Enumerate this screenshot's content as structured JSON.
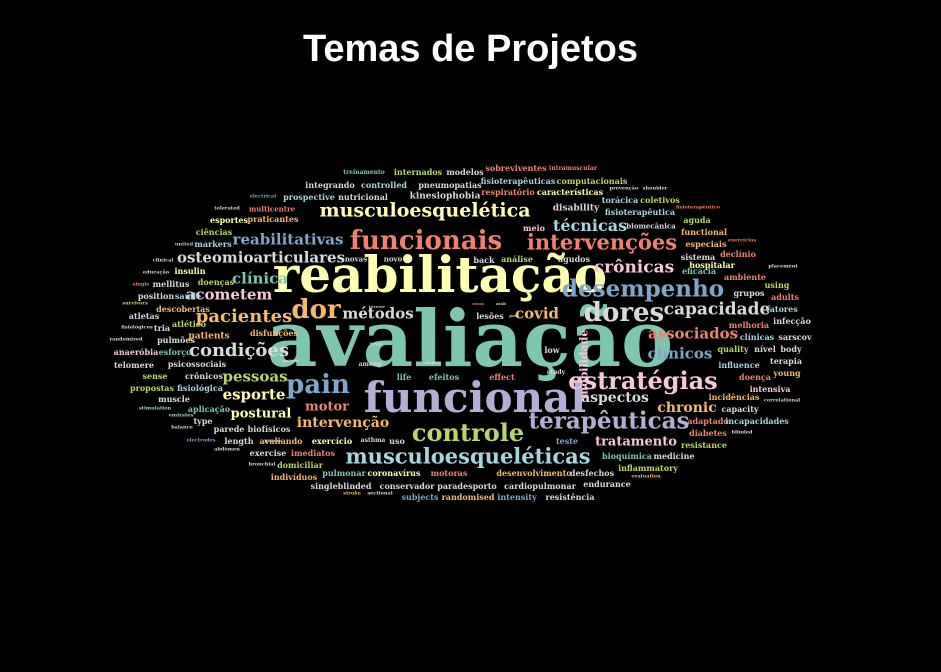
{
  "header": {
    "title": "Temas de Projetos"
  },
  "palette": {
    "teal": "#7fc6b1",
    "lavender": "#b3aed4",
    "salmon": "#f08070",
    "blue": "#80a6cc",
    "orange": "#f6b86b",
    "green": "#b7d867",
    "pink": "#f8c6dc",
    "yellow": "#ffffb0",
    "lightblue": "#a8d4e0",
    "grey": "#d9d9d9"
  },
  "words": [
    {
      "text": "avaliação",
      "color": "teal",
      "weight": 100
    },
    {
      "text": "reabilitação",
      "color": "yellow",
      "weight": 62
    },
    {
      "text": "funcional",
      "color": "lavender",
      "weight": 55
    },
    {
      "text": "funcionais",
      "color": "salmon",
      "weight": 32
    },
    {
      "text": "musculoesquelética",
      "color": "yellow",
      "weight": 22
    },
    {
      "text": "intervenções",
      "color": "salmon",
      "weight": 24
    },
    {
      "text": "dor",
      "color": "orange",
      "weight": 30
    },
    {
      "text": "dores",
      "color": "grey",
      "weight": 30
    },
    {
      "text": "desempenho",
      "color": "blue",
      "weight": 27
    },
    {
      "text": "estratégias",
      "color": "pink",
      "weight": 28
    },
    {
      "text": "pain",
      "color": "blue",
      "weight": 30
    },
    {
      "text": "controle",
      "color": "green",
      "weight": 27
    },
    {
      "text": "terapêuticas",
      "color": "lavender",
      "weight": 27
    },
    {
      "text": "musculoesqueléticas",
      "color": "lightblue",
      "weight": 24
    },
    {
      "text": "pacientes",
      "color": "orange",
      "weight": 21
    },
    {
      "text": "condições",
      "color": "grey",
      "weight": 21
    },
    {
      "text": "crônicas",
      "color": "pink",
      "weight": 20
    },
    {
      "text": "capacidade",
      "color": "grey",
      "weight": 19
    },
    {
      "text": "técnicas",
      "color": "lightblue",
      "weight": 18
    },
    {
      "text": "reabilitativas",
      "color": "blue",
      "weight": 17
    },
    {
      "text": "osteomioarticulares",
      "color": "grey",
      "weight": 17
    },
    {
      "text": "clínica",
      "color": "teal",
      "weight": 17
    },
    {
      "text": "acometem",
      "color": "pink",
      "weight": 17
    },
    {
      "text": "métodos",
      "color": "grey",
      "weight": 17
    },
    {
      "text": "covid",
      "color": "orange",
      "weight": 17
    },
    {
      "text": "associados",
      "color": "salmon",
      "weight": 17
    },
    {
      "text": "pessoas",
      "color": "green",
      "weight": 17
    },
    {
      "text": "esporte",
      "color": "yellow",
      "weight": 17
    },
    {
      "text": "clínicos",
      "color": "blue",
      "weight": 17
    },
    {
      "text": "chronic",
      "color": "orange",
      "weight": 16
    },
    {
      "text": "aspectos",
      "color": "grey",
      "weight": 16
    },
    {
      "text": "intervenção",
      "color": "orange",
      "weight": 16
    },
    {
      "text": "motor",
      "color": "salmon",
      "weight": 15
    },
    {
      "text": "postural",
      "color": "yellow",
      "weight": 15
    },
    {
      "text": "tratamento",
      "color": "pink",
      "weight": 15
    },
    {
      "text": "mobilidade",
      "color": "pink",
      "weight": 13
    },
    {
      "text": "modelos",
      "color": "grey",
      "weight": 10
    },
    {
      "text": "sobreviventes",
      "color": "salmon",
      "weight": 9
    },
    {
      "text": "internados",
      "color": "green",
      "weight": 9
    },
    {
      "text": "integrando",
      "color": "grey",
      "weight": 9
    },
    {
      "text": "controlled",
      "color": "lightblue",
      "weight": 9
    },
    {
      "text": "pneumopatias",
      "color": "grey",
      "weight": 9
    },
    {
      "text": "fisioterapêuticas",
      "color": "lightblue",
      "weight": 9
    },
    {
      "text": "computacionais",
      "color": "green",
      "weight": 9
    },
    {
      "text": "respiratório",
      "color": "salmon",
      "weight": 9
    },
    {
      "text": "características",
      "color": "yellow",
      "weight": 9
    },
    {
      "text": "prospective",
      "color": "lightblue",
      "weight": 9
    },
    {
      "text": "nutricional",
      "color": "grey",
      "weight": 9
    },
    {
      "text": "kinesiophobia",
      "color": "grey",
      "weight": 10
    },
    {
      "text": "disability",
      "color": "grey",
      "weight": 10
    },
    {
      "text": "torácica",
      "color": "lightblue",
      "weight": 9
    },
    {
      "text": "coletivos",
      "color": "green",
      "weight": 9
    },
    {
      "text": "fisioterapêutica",
      "color": "lightblue",
      "weight": 9
    },
    {
      "text": "praticantes",
      "color": "orange",
      "weight": 9
    },
    {
      "text": "esportes",
      "color": "yellow",
      "weight": 9
    },
    {
      "text": "meio",
      "color": "pink",
      "weight": 9
    },
    {
      "text": "aguda",
      "color": "green",
      "weight": 9
    },
    {
      "text": "functional",
      "color": "orange",
      "weight": 9
    },
    {
      "text": "especiais",
      "color": "orange",
      "weight": 9
    },
    {
      "text": "declínio",
      "color": "salmon",
      "weight": 9
    },
    {
      "text": "sistema",
      "color": "grey",
      "weight": 9
    },
    {
      "text": "markers",
      "color": "lightblue",
      "weight": 9
    },
    {
      "text": "ciências",
      "color": "green",
      "weight": 9
    },
    {
      "text": "insulin",
      "color": "yellow",
      "weight": 9
    },
    {
      "text": "mellitus",
      "color": "grey",
      "weight": 9
    },
    {
      "text": "doenças",
      "color": "green",
      "weight": 9
    },
    {
      "text": "position",
      "color": "grey",
      "weight": 9
    },
    {
      "text": "saúde",
      "color": "lightblue",
      "weight": 9
    },
    {
      "text": "descobertas",
      "color": "orange",
      "weight": 9
    },
    {
      "text": "atlético",
      "color": "green",
      "weight": 9
    },
    {
      "text": "pulmões",
      "color": "grey",
      "weight": 9
    },
    {
      "text": "esforço",
      "color": "teal",
      "weight": 9
    },
    {
      "text": "anaeróbia",
      "color": "pink",
      "weight": 9
    },
    {
      "text": "tria",
      "color": "grey",
      "weight": 9
    },
    {
      "text": "atletas",
      "color": "grey",
      "weight": 9
    },
    {
      "text": "patients",
      "color": "orange",
      "weight": 10
    },
    {
      "text": "disfunções",
      "color": "orange",
      "weight": 9
    },
    {
      "text": "telomere",
      "color": "grey",
      "weight": 9
    },
    {
      "text": "psicossociais",
      "color": "grey",
      "weight": 9
    },
    {
      "text": "sense",
      "color": "green",
      "weight": 9
    },
    {
      "text": "crônicos",
      "color": "grey",
      "weight": 9
    },
    {
      "text": "propostas",
      "color": "green",
      "weight": 9
    },
    {
      "text": "muscle",
      "color": "grey",
      "weight": 9
    },
    {
      "text": "fisiológica",
      "color": "lightblue",
      "weight": 9
    },
    {
      "text": "aplicação",
      "color": "teal",
      "weight": 9
    },
    {
      "text": "type",
      "color": "grey",
      "weight": 9
    },
    {
      "text": "parede",
      "color": "grey",
      "weight": 9
    },
    {
      "text": "biofísicos",
      "color": "grey",
      "weight": 9
    },
    {
      "text": "length",
      "color": "grey",
      "weight": 9
    },
    {
      "text": "avaliando",
      "color": "orange",
      "weight": 9
    },
    {
      "text": "exercício",
      "color": "yellow",
      "weight": 9
    },
    {
      "text": "asthma",
      "color": "grey",
      "weight": 7
    },
    {
      "text": "uso",
      "color": "grey",
      "weight": 9
    },
    {
      "text": "exercise",
      "color": "grey",
      "weight": 9
    },
    {
      "text": "imediatos",
      "color": "salmon",
      "weight": 9
    },
    {
      "text": "domiciliar",
      "color": "green",
      "weight": 9
    },
    {
      "text": "pulmonar",
      "color": "teal",
      "weight": 9
    },
    {
      "text": "coronavírus",
      "color": "yellow",
      "weight": 9
    },
    {
      "text": "motoras",
      "color": "salmon",
      "weight": 9
    },
    {
      "text": "indivíduos",
      "color": "orange",
      "weight": 9
    },
    {
      "text": "singleblinded",
      "color": "grey",
      "weight": 9
    },
    {
      "text": "conservador",
      "color": "grey",
      "weight": 9
    },
    {
      "text": "paradesporto",
      "color": "grey",
      "weight": 9
    },
    {
      "text": "cardiopulmonar",
      "color": "grey",
      "weight": 9
    },
    {
      "text": "endurance",
      "color": "grey",
      "weight": 9
    },
    {
      "text": "subjects",
      "color": "blue",
      "weight": 9
    },
    {
      "text": "randomised",
      "color": "orange",
      "weight": 9
    },
    {
      "text": "intensity",
      "color": "blue",
      "weight": 9
    },
    {
      "text": "resistência",
      "color": "grey",
      "weight": 9
    },
    {
      "text": "desenvolvimento",
      "color": "orange",
      "weight": 9
    },
    {
      "text": "desfechos",
      "color": "grey",
      "weight": 9
    },
    {
      "text": "bioquímica",
      "color": "teal",
      "weight": 9
    },
    {
      "text": "medicine",
      "color": "grey",
      "weight": 9
    },
    {
      "text": "inflammatory",
      "color": "green",
      "weight": 9
    },
    {
      "text": "teste",
      "color": "blue",
      "weight": 9
    },
    {
      "text": "resistance",
      "color": "green",
      "weight": 9
    },
    {
      "text": "adaptado",
      "color": "salmon",
      "weight": 9
    },
    {
      "text": "incapacidades",
      "color": "lightblue",
      "weight": 9
    },
    {
      "text": "diabetes",
      "color": "salmon",
      "weight": 9
    },
    {
      "text": "incidências",
      "color": "orange",
      "weight": 9
    },
    {
      "text": "capacity",
      "color": "grey",
      "weight": 9
    },
    {
      "text": "intensiva",
      "color": "pink",
      "weight": 9
    },
    {
      "text": "young",
      "color": "orange",
      "weight": 9
    },
    {
      "text": "doença",
      "color": "salmon",
      "weight": 9
    },
    {
      "text": "terapia",
      "color": "grey",
      "weight": 9
    },
    {
      "text": "influence",
      "color": "lightblue",
      "weight": 9
    },
    {
      "text": "quality",
      "color": "green",
      "weight": 9
    },
    {
      "text": "nível",
      "color": "grey",
      "weight": 9
    },
    {
      "text": "body",
      "color": "grey",
      "weight": 9
    },
    {
      "text": "sarscov",
      "color": "grey",
      "weight": 9
    },
    {
      "text": "clínicas",
      "color": "lightblue",
      "weight": 9
    },
    {
      "text": "melhoria",
      "color": "salmon",
      "weight": 9
    },
    {
      "text": "infecção",
      "color": "grey",
      "weight": 9
    },
    {
      "text": "fatores",
      "color": "lightblue",
      "weight": 9
    },
    {
      "text": "adults",
      "color": "salmon",
      "weight": 9
    },
    {
      "text": "using",
      "color": "green",
      "weight": 9
    },
    {
      "text": "grupos",
      "color": "grey",
      "weight": 9
    },
    {
      "text": "hospitalar",
      "color": "yellow",
      "weight": 9
    },
    {
      "text": "ambiente",
      "color": "salmon",
      "weight": 9
    },
    {
      "text": "eficácia",
      "color": "teal",
      "weight": 9
    },
    {
      "text": "life",
      "color": "teal",
      "weight": 9
    },
    {
      "text": "efeitos",
      "color": "teal",
      "weight": 9
    },
    {
      "text": "effect",
      "color": "salmon",
      "weight": 9
    },
    {
      "text": "lesões",
      "color": "grey",
      "weight": 9
    },
    {
      "text": "low",
      "color": "grey",
      "weight": 9
    },
    {
      "text": "back",
      "color": "grey",
      "weight": 9
    },
    {
      "text": "análise",
      "color": "green",
      "weight": 9
    },
    {
      "text": "agudos",
      "color": "grey",
      "weight": 9
    },
    {
      "text": "among",
      "color": "grey",
      "weight": 8
    },
    {
      "text": "study",
      "color": "grey",
      "weight": 8
    },
    {
      "text": "trial",
      "color": "grey",
      "weight": 7
    },
    {
      "text": "novas",
      "color": "grey",
      "weight": 8
    },
    {
      "text": "novo",
      "color": "grey",
      "weight": 8
    },
    {
      "text": "biomecânica",
      "color": "grey",
      "weight": 8
    },
    {
      "text": "treinamento",
      "color": "teal",
      "weight": 7
    },
    {
      "text": "intramuscular",
      "color": "salmon",
      "weight": 7
    },
    {
      "text": "prevenção",
      "color": "grey",
      "weight": 7
    },
    {
      "text": "shoulder",
      "color": "grey",
      "weight": 7
    },
    {
      "text": "electrical",
      "color": "blue",
      "weight": 7
    },
    {
      "text": "multicentre",
      "color": "salmon",
      "weight": 8
    },
    {
      "text": "tolerated",
      "color": "grey",
      "weight": 6
    },
    {
      "text": "fisioterapêutico",
      "color": "salmon",
      "weight": 6
    },
    {
      "text": "exercícios",
      "color": "salmon",
      "weight": 6
    },
    {
      "text": "placement",
      "color": "grey",
      "weight": 6
    },
    {
      "text": "united",
      "color": "lightblue",
      "weight": 6
    },
    {
      "text": "clinical",
      "color": "grey",
      "weight": 6
    },
    {
      "text": "educação",
      "color": "grey",
      "weight": 6
    },
    {
      "text": "single",
      "color": "salmon",
      "weight": 6
    },
    {
      "text": "survivors",
      "color": "green",
      "weight": 6
    },
    {
      "text": "fisiológicos",
      "color": "grey",
      "weight": 6
    },
    {
      "text": "randomized",
      "color": "grey",
      "weight": 6
    },
    {
      "text": "stimulation",
      "color": "lightblue",
      "weight": 6
    },
    {
      "text": "emirates",
      "color": "lightblue",
      "weight": 6
    },
    {
      "text": "balance",
      "color": "grey",
      "weight": 6
    },
    {
      "text": "electrodes",
      "color": "blue",
      "weight": 6
    },
    {
      "text": "abdômen",
      "color": "grey",
      "weight": 6
    },
    {
      "text": "bronchial",
      "color": "grey",
      "weight": 6
    },
    {
      "text": "stroke",
      "color": "orange",
      "weight": 6
    },
    {
      "text": "sectional",
      "color": "grey",
      "weight": 6
    },
    {
      "text": "evaluation",
      "color": "orange",
      "weight": 6
    },
    {
      "text": "blinded",
      "color": "grey",
      "weight": 6
    },
    {
      "text": "correlational",
      "color": "grey",
      "weight": 6
    },
    {
      "text": "inverse",
      "color": "lightblue",
      "weight": 5
    },
    {
      "text": "cross",
      "color": "salmon",
      "weight": 5
    },
    {
      "text": "manter",
      "color": "grey",
      "weight": 5
    },
    {
      "text": "patient",
      "color": "grey",
      "weight": 5
    },
    {
      "text": "posture",
      "color": "grey",
      "weight": 5
    },
    {
      "text": "arab",
      "color": "grey",
      "weight": 5
    },
    {
      "text": "post",
      "color": "grey",
      "weight": 5
    }
  ]
}
